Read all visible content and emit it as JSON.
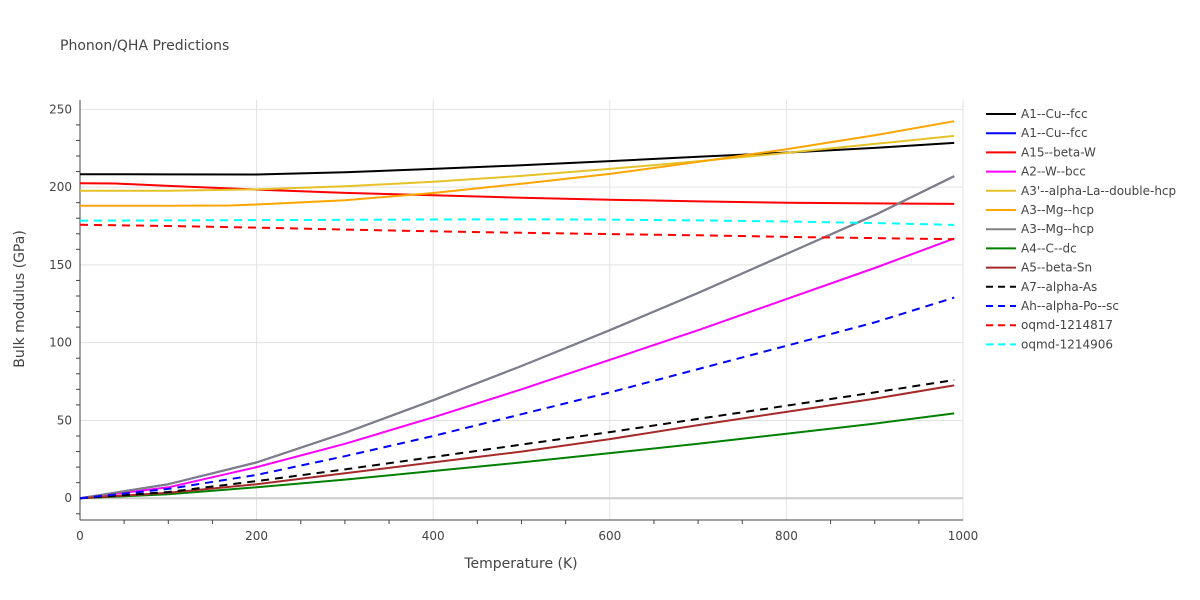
{
  "chart_data": {
    "type": "line",
    "title": "Phonon/QHA Predictions",
    "xlabel": "Temperature (K)",
    "ylabel": "Bulk modulus (GPa)",
    "xlim": [
      0,
      1000
    ],
    "ylim": [
      -14,
      256
    ],
    "x_ticks": [
      0,
      200,
      400,
      600,
      800,
      1000
    ],
    "y_ticks": [
      0,
      50,
      100,
      150,
      200,
      250
    ],
    "grid": true,
    "legend_position": "right",
    "series": [
      {
        "name": "A1--Cu--fcc",
        "color": "#000000",
        "dash": "solid",
        "x": [
          0,
          100,
          200,
          300,
          400,
          500,
          600,
          700,
          800,
          900,
          990
        ],
        "y": [
          208.3,
          208.2,
          208.1,
          209.6,
          211.7,
          214.0,
          216.7,
          219.5,
          222.2,
          225.2,
          228.4
        ]
      },
      {
        "name": "A1--Cu--fcc",
        "color": "#0000ff",
        "dash": "solid",
        "x": [
          0,
          100,
          200,
          300,
          400,
          500,
          600,
          700,
          800,
          900,
          990
        ],
        "y": [
          0,
          9,
          23,
          42,
          63,
          85,
          108,
          132,
          157,
          182,
          207
        ]
      },
      {
        "name": "A15--beta-W",
        "color": "#ff0000",
        "dash": "solid",
        "x": [
          0,
          40,
          100,
          200,
          300,
          400,
          500,
          600,
          700,
          800,
          900,
          990
        ],
        "y": [
          202.5,
          202.3,
          200.8,
          198.4,
          196.3,
          194.8,
          193.1,
          191.9,
          190.8,
          190.0,
          189.5,
          189.2
        ]
      },
      {
        "name": "A2--W--bcc",
        "color": "#ff00ff",
        "dash": "solid",
        "x": [
          0,
          100,
          200,
          300,
          400,
          500,
          600,
          700,
          800,
          900,
          990
        ],
        "y": [
          0,
          7,
          20,
          35,
          52,
          70,
          89,
          108,
          128,
          148,
          167
        ]
      },
      {
        "name": "A3'--alpha-La--double-hcp",
        "color": "#e6c229",
        "dash": "solid",
        "x": [
          0,
          100,
          200,
          300,
          400,
          500,
          600,
          700,
          800,
          900,
          990
        ],
        "y": [
          197.6,
          197.6,
          198.5,
          200.5,
          203.4,
          207.2,
          211.7,
          216.6,
          222.0,
          227.8,
          232.9
        ]
      },
      {
        "name": "A3--Mg--hcp",
        "color": "#ffa500",
        "dash": "solid",
        "x": [
          0,
          100,
          170,
          200,
          300,
          400,
          500,
          600,
          700,
          800,
          900,
          990
        ],
        "y": [
          188.0,
          188.0,
          188.2,
          188.8,
          191.6,
          196.2,
          202.2,
          208.5,
          216.2,
          224.4,
          233.3,
          242.4
        ]
      },
      {
        "name": "A3--Mg--hcp",
        "color": "#808080",
        "dash": "solid",
        "x": [
          0,
          100,
          200,
          300,
          400,
          500,
          600,
          700,
          800,
          900,
          990
        ],
        "y": [
          0,
          9,
          23,
          42,
          63,
          85,
          108,
          132,
          157,
          182,
          207
        ]
      },
      {
        "name": "A4--C--dc",
        "color": "#008000",
        "dash": "solid",
        "x": [
          0,
          100,
          200,
          300,
          400,
          500,
          600,
          700,
          800,
          900,
          990
        ],
        "y": [
          0,
          2.5,
          7,
          12,
          17.5,
          23,
          29,
          35,
          41.5,
          48,
          54.5
        ]
      },
      {
        "name": "A5--beta-Sn",
        "color": "#a52a2a",
        "dash": "solid",
        "x": [
          0,
          100,
          200,
          300,
          400,
          500,
          600,
          700,
          800,
          900,
          990
        ],
        "y": [
          0,
          3.5,
          9,
          16,
          23,
          30,
          38,
          47,
          55.5,
          64,
          72.5
        ]
      },
      {
        "name": "A7--alpha-As",
        "color": "#000000",
        "dash": "dash",
        "x": [
          0,
          100,
          200,
          300,
          400,
          500,
          600,
          700,
          800,
          900,
          990
        ],
        "y": [
          0,
          4,
          11,
          18.5,
          26.5,
          34.5,
          42.5,
          51,
          59.5,
          68,
          76
        ]
      },
      {
        "name": "Ah--alpha-Po--sc",
        "color": "#0000ff",
        "dash": "dash",
        "x": [
          0,
          100,
          200,
          300,
          400,
          500,
          600,
          700,
          800,
          900,
          990
        ],
        "y": [
          0,
          6,
          15,
          27,
          40,
          54,
          68,
          83,
          98,
          113,
          129
        ]
      },
      {
        "name": "oqmd-1214817",
        "color": "#ff0000",
        "dash": "dash",
        "x": [
          0,
          100,
          200,
          300,
          400,
          500,
          600,
          700,
          800,
          900,
          990
        ],
        "y": [
          175.8,
          175.0,
          174.0,
          172.7,
          171.6,
          170.6,
          169.8,
          169.0,
          168.0,
          167.2,
          166.5
        ]
      },
      {
        "name": "oqmd-1214906",
        "color": "#00ffff",
        "dash": "dash",
        "x": [
          0,
          100,
          200,
          300,
          400,
          500,
          600,
          700,
          800,
          900,
          990
        ],
        "y": [
          178.5,
          178.6,
          178.8,
          179.0,
          179.2,
          179.3,
          179.1,
          178.6,
          177.9,
          176.9,
          175.7
        ]
      }
    ]
  }
}
